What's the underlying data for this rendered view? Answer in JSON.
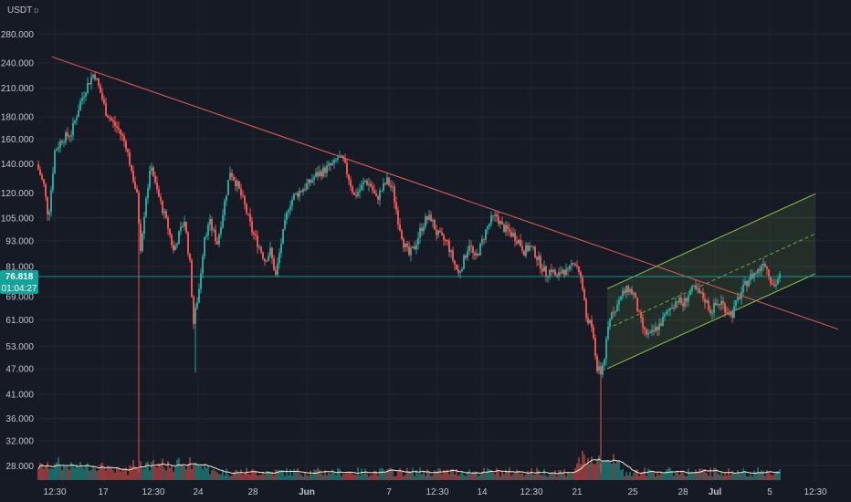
{
  "header": {
    "unit": "USDT",
    "unit_sup": "D"
  },
  "price_tag": {
    "price": "76.818",
    "countdown": "01:04:27"
  },
  "colors": {
    "background": "#161a25",
    "up": "#26a69a",
    "down": "#ef5350",
    "trendline": "#e2615a",
    "channel": "#8bc34a",
    "volume_avg": "#f3ecd2",
    "last_price": "#15a29a"
  },
  "chart_data": {
    "type": "candlestick",
    "y_scale": "log",
    "y_ticks": [
      "280.000",
      "240.000",
      "210.000",
      "180.000",
      "160.000",
      "140.000",
      "120.000",
      "105.000",
      "93.000",
      "81.000",
      "69.000",
      "61.000",
      "53.000",
      "47.000",
      "41.000",
      "36.000",
      "32.000",
      "28.000"
    ],
    "x_ticks": [
      "12:30",
      "17",
      "12:30",
      "24",
      "28",
      "Jun",
      "7",
      "12:30",
      "14",
      "12:30",
      "21",
      "25",
      "28",
      "Jul",
      "5",
      "12:30"
    ],
    "key_points": {
      "start_price": 140,
      "peak": 228,
      "range_highs": [
        145,
        108,
        106
      ],
      "wick_lows": [
        27,
        46,
        28
      ],
      "crash_low": 44,
      "crash_wick_low": 27,
      "last_price": 76.818
    },
    "trendline": {
      "from_price": 248,
      "to_price": 58,
      "description": "descending resistance from May peak"
    },
    "channel": {
      "type": "ascending parallel channel",
      "lower_start": 47,
      "upper_end": 110
    },
    "series": [
      {
        "name": "",
        "kind": "price candles"
      },
      {
        "name": "",
        "kind": "volume bars with moving average"
      }
    ]
  }
}
